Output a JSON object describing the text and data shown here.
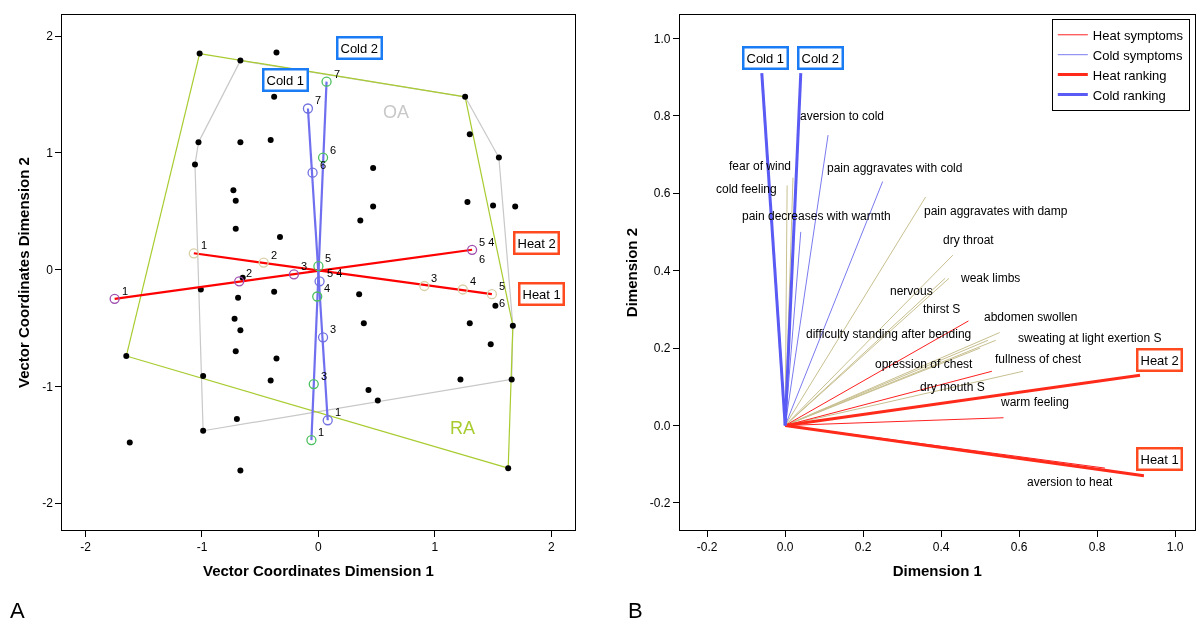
{
  "chart_data": [
    {
      "type": "scatter",
      "xlabel": "Vector Coordinates Dimension 1",
      "ylabel": "Vector Coordinates Dimension 2",
      "xlim": [
        -2.2,
        2.2
      ],
      "ylim": [
        -2.23,
        2.18
      ],
      "xticks": [
        -2,
        -1,
        0,
        1,
        2
      ],
      "yticks": [
        -2,
        -1,
        0,
        1,
        2
      ],
      "legend": false,
      "marker": "none",
      "series": [
        {
          "type": "line",
          "color": "#c8c8c8",
          "x": [
            -0.67,
            1.26
          ],
          "values": [
            1.79,
            1.48
          ]
        },
        {
          "type": "line",
          "color": "#c8c8c8",
          "x": [
            1.26,
            1.55
          ],
          "values": [
            1.48,
            0.96
          ]
        },
        {
          "type": "line",
          "color": "#c8c8c8",
          "x": [
            1.55,
            1.67
          ],
          "values": [
            0.96,
            -0.48
          ]
        },
        {
          "type": "line",
          "color": "#c8c8c8",
          "x": [
            1.67,
            1.66
          ],
          "values": [
            -0.48,
            -0.94
          ]
        },
        {
          "type": "line",
          "color": "#c8c8c8",
          "x": [
            1.66,
            -0.99
          ],
          "values": [
            -0.94,
            -1.38
          ]
        },
        {
          "type": "line",
          "color": "#c8c8c8",
          "x": [
            -0.99,
            -1.06
          ],
          "values": [
            -1.38,
            0.9
          ]
        },
        {
          "type": "line",
          "color": "#c8c8c8",
          "x": [
            -1.06,
            -1.03
          ],
          "values": [
            0.9,
            1.09
          ]
        },
        {
          "type": "line",
          "color": "#c8c8c8",
          "x": [
            -1.03,
            -0.67
          ],
          "values": [
            1.09,
            1.79
          ]
        },
        {
          "type": "line",
          "color": "#a8cc30",
          "x": [
            -1.02,
            1.26
          ],
          "values": [
            1.85,
            1.48
          ]
        },
        {
          "type": "line",
          "color": "#a8cc30",
          "x": [
            1.26,
            1.67
          ],
          "values": [
            1.48,
            -0.48
          ]
        },
        {
          "type": "line",
          "color": "#a8cc30",
          "x": [
            1.67,
            1.63
          ],
          "values": [
            -0.48,
            -1.7
          ]
        },
        {
          "type": "line",
          "color": "#a8cc30",
          "x": [
            1.63,
            -1.65
          ],
          "values": [
            -1.7,
            -0.74
          ]
        },
        {
          "type": "line",
          "color": "#a8cc30",
          "x": [
            -1.65,
            -1.02
          ],
          "values": [
            -0.74,
            1.85
          ]
        },
        {
          "type": "scatter",
          "marker": "circle",
          "color": "#000000",
          "x": [
            -1.02,
            -0.36,
            -0.67,
            -0.38,
            1.26,
            1.3,
            -1.03,
            -0.67,
            -0.41,
            -1.06,
            1.55,
            0.47,
            -0.73,
            -0.71,
            0.47,
            1.28,
            1.5,
            1.69,
            0.36,
            -0.71,
            -0.33,
            -0.65,
            -1.01,
            -0.38,
            -0.69,
            0.35,
            1.52,
            -0.72,
            -0.67,
            0.39,
            1.3,
            1.67,
            1.48,
            -0.71,
            -0.36,
            -0.99,
            -0.41,
            1.22,
            1.66,
            0.43,
            0.51,
            -0.7,
            -0.99,
            -1.62,
            -0.67,
            -1.65,
            1.63
          ],
          "values": [
            1.85,
            1.86,
            1.79,
            1.48,
            1.48,
            1.16,
            1.09,
            1.09,
            1.11,
            0.9,
            0.96,
            0.87,
            0.68,
            0.59,
            0.54,
            0.58,
            0.55,
            0.54,
            0.42,
            0.35,
            0.28,
            -0.07,
            -0.17,
            -0.19,
            -0.24,
            -0.21,
            -0.31,
            -0.42,
            -0.52,
            -0.46,
            -0.46,
            -0.48,
            -0.64,
            -0.7,
            -0.76,
            -0.91,
            -0.95,
            -0.94,
            -0.94,
            -1.03,
            -1.12,
            -1.28,
            -1.38,
            -1.48,
            -1.72,
            -0.74,
            -1.7
          ]
        },
        {
          "type": "line",
          "color": "#ff0000",
          "x": [
            -1.07,
            1.49
          ],
          "values": [
            0.14,
            -0.21
          ]
        },
        {
          "type": "line",
          "color": "#ff0000",
          "x": [
            -1.75,
            1.32
          ],
          "values": [
            -0.25,
            0.17
          ]
        },
        {
          "type": "line",
          "color": "#6f6ff0",
          "x": [
            -0.09,
            0.08
          ],
          "values": [
            1.38,
            -1.29
          ]
        },
        {
          "type": "line",
          "color": "#6f6ff0",
          "x": [
            0.07,
            -0.06
          ],
          "values": [
            1.61,
            -1.46
          ]
        },
        {
          "type": "scatter",
          "marker": "circle",
          "color": "#d9cfa6",
          "x": [
            -1.07,
            -0.47,
            0.91,
            1.24,
            1.49
          ],
          "values": [
            0.14,
            0.06,
            -0.14,
            -0.17,
            -0.21
          ]
        },
        {
          "type": "scatter",
          "marker": "circle",
          "color": "#a04fb0",
          "x": [
            -1.75,
            -0.68,
            -0.21,
            1.32
          ],
          "values": [
            -0.25,
            -0.1,
            -0.04,
            0.17
          ]
        },
        {
          "type": "scatter",
          "marker": "circle",
          "color": "#7070e0",
          "x": [
            -0.09,
            -0.05,
            0.01,
            0.04,
            0.08
          ],
          "values": [
            1.38,
            0.83,
            -0.1,
            -0.58,
            -1.29
          ]
        },
        {
          "type": "scatter",
          "marker": "circle",
          "color": "#4cc060",
          "x": [
            0.07,
            0.04,
            0.0,
            -0.01,
            -0.04,
            -0.06
          ],
          "values": [
            1.61,
            0.96,
            0.03,
            -0.23,
            -0.98,
            -1.46
          ]
        }
      ],
      "annotations": [
        "Heat 1",
        "Heat 2",
        "Cold 1",
        "Cold 2",
        "OA",
        "RA",
        "A",
        {
          "text": "1",
          "x": -1.07,
          "y": 0.14
        },
        {
          "text": "2",
          "x": -0.47,
          "y": 0.06
        },
        {
          "text": "3",
          "x": 0.91,
          "y": -0.14
        },
        {
          "text": "4",
          "x": 1.24,
          "y": -0.17
        },
        {
          "text": "5",
          "x": 1.49,
          "y": -0.21
        },
        {
          "text": "6",
          "x": 1.49,
          "y": -0.21
        },
        {
          "text": "1",
          "x": -1.75,
          "y": -0.25
        },
        {
          "text": "2",
          "x": -0.68,
          "y": -0.1
        },
        {
          "text": "3",
          "x": -0.21,
          "y": -0.04
        },
        {
          "text": "5 4",
          "x": 1.32,
          "y": 0.17
        },
        {
          "text": "6",
          "x": 1.32,
          "y": 0.17
        },
        {
          "text": "7",
          "x": -0.09,
          "y": 1.38
        },
        {
          "text": "6",
          "x": -0.05,
          "y": 0.83
        },
        {
          "text": "5 4",
          "x": 0.01,
          "y": -0.1
        },
        {
          "text": "3",
          "x": 0.04,
          "y": -0.58
        },
        {
          "text": "1",
          "x": 0.08,
          "y": -1.29
        },
        {
          "text": "7",
          "x": 0.07,
          "y": 1.61
        },
        {
          "text": "6",
          "x": 0.04,
          "y": 0.96
        },
        {
          "text": "5",
          "x": 0.0,
          "y": 0.03
        },
        {
          "text": "4",
          "x": -0.01,
          "y": -0.23
        },
        {
          "text": "3",
          "x": -0.04,
          "y": -0.98
        },
        {
          "text": "1",
          "x": -0.06,
          "y": -1.46
        }
      ]
    },
    {
      "type": "line",
      "xlabel": "Dimension 1",
      "ylabel": "Dimension 2",
      "xlim": [
        -0.27,
        1.05
      ],
      "ylim": [
        -0.27,
        1.06
      ],
      "xticks": [
        -0.2,
        {
          "value": 0,
          "label": "0.0"
        },
        0.2,
        0.4,
        0.6,
        0.8,
        {
          "value": 1,
          "label": "1.0"
        }
      ],
      "yticks": [
        -0.2,
        {
          "value": 0,
          "label": "0.0"
        },
        0.2,
        0.4,
        0.6,
        0.8,
        {
          "value": 1,
          "label": "1.0"
        }
      ],
      "legend": "top right",
      "marker": "none",
      "series": [
        {
          "color": "#c8c090",
          "x": [
            0,
            0.02,
            null,
            0,
            0.005,
            null,
            0,
            0.36,
            null,
            0,
            0.43,
            null,
            0,
            0.42,
            null,
            0,
            0.41,
            null,
            0,
            0.55,
            null,
            0,
            0.54,
            null,
            0,
            0.52,
            null,
            0,
            0.5,
            null,
            0,
            0.61
          ],
          "values": [
            0,
            0.64,
            null,
            0,
            0.62,
            null,
            0,
            0.59,
            null,
            0,
            0.44,
            null,
            0,
            0.38,
            null,
            0,
            0.38,
            null,
            0,
            0.24,
            null,
            0,
            0.22,
            null,
            0,
            0.22,
            null,
            0,
            0.2,
            null,
            0,
            0.14
          ]
        },
        {
          "name": "Heat symptoms",
          "color": "#ff2020",
          "x": [
            0,
            0.47,
            null,
            0,
            0.53,
            null,
            0,
            0.56,
            null,
            0,
            0.82
          ],
          "values": [
            0,
            0.27,
            null,
            0,
            0.14,
            null,
            0,
            0.02,
            null,
            0,
            -0.11
          ]
        },
        {
          "name": "Cold symptoms",
          "color": "#7a7af0",
          "x": [
            0,
            0.11,
            null,
            0,
            0.25,
            null,
            0,
            0.04
          ],
          "values": [
            0,
            0.75,
            null,
            0,
            0.63,
            null,
            0,
            0.5
          ]
        },
        {
          "name": "Heat ranking",
          "color": "#ff2a1a",
          "x": [
            0,
            0.92,
            null,
            0,
            0.91
          ],
          "values": [
            0,
            -0.13,
            null,
            0,
            0.13
          ]
        },
        {
          "name": "Cold ranking",
          "color": "#5a5af5",
          "x": [
            0,
            -0.06,
            null,
            0,
            0.04
          ],
          "values": [
            0,
            0.91,
            null,
            0,
            0.91
          ]
        }
      ],
      "annotations": [
        "Heat 1",
        "Heat 2",
        "Cold 1",
        "Cold 2",
        "aversion to cold",
        "fear of wind",
        "cold feeling",
        "pain aggravates with cold",
        "pain decreases with warmth",
        "pain aggravates with damp",
        "dry throat",
        "weak limbs",
        "nervous",
        "thirst S",
        "abdomen swollen",
        "difficulty standing after bending",
        "sweating at light exertion S",
        "opression of chest",
        "fullness of chest",
        "dry mouth S",
        "warm feeling",
        "aversion to heat",
        "B"
      ]
    }
  ]
}
